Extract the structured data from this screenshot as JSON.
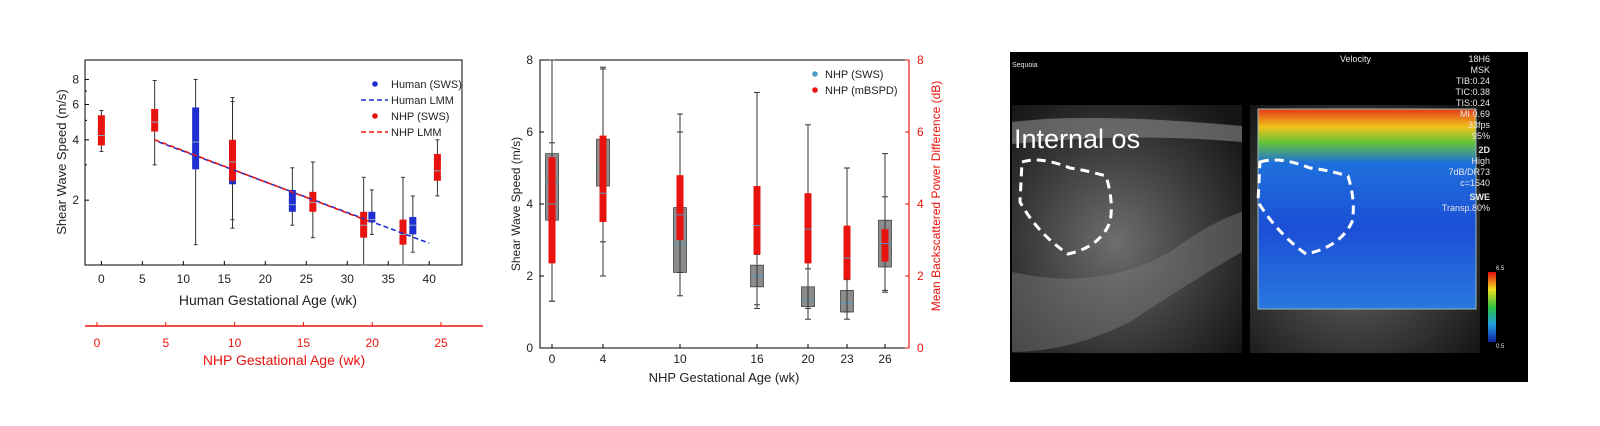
{
  "panel_a": {
    "ylabel": "Shear Wave Speed (m/s)",
    "xlabel": "Human Gestational Age (wk)",
    "x2label": "NHP Gestational Age (wk)",
    "y_ticks": [
      "2",
      "4",
      "6",
      "8"
    ],
    "x_ticks": [
      "0",
      "5",
      "10",
      "15",
      "20",
      "25",
      "30",
      "35",
      "40"
    ],
    "x2_ticks": [
      "0",
      "5",
      "10",
      "15",
      "20",
      "25"
    ],
    "legend": [
      {
        "label": "Human (SWS)",
        "kind": "dot",
        "color": "#1f2fcf"
      },
      {
        "label": "Human LMM",
        "kind": "dash",
        "color": "#1f2fcf"
      },
      {
        "label": "NHP (SWS)",
        "kind": "dot",
        "color": "#e8130e"
      },
      {
        "label": "NHP LMM",
        "kind": "dash",
        "color": "#e8130e"
      }
    ]
  },
  "panel_b": {
    "ylabel_left": "Shear Wave Speed (m/s)",
    "ylabel_right": "Mean Backscattered Power Difference (dB)",
    "xlabel": "NHP Gestational Age (wk)",
    "y_ticks": [
      "0",
      "2",
      "4",
      "6",
      "8"
    ],
    "x_ticks": [
      "0",
      "4",
      "10",
      "16",
      "20",
      "23",
      "26"
    ],
    "legend": [
      {
        "label": "NHP (SWS)",
        "color": "#4a9cc9"
      },
      {
        "label": "NHP (mBSPD)",
        "color": "#e8130e"
      }
    ]
  },
  "panel_c": {
    "label_internal_os": "Internal os",
    "brand": "Sequoia",
    "mode": "Velocity",
    "info_lines": [
      "18H6",
      "MSK",
      "TIB:0.24",
      "TIC:0.38",
      "TIS:0.24",
      "MI 0.69",
      "33fps",
      "95%"
    ],
    "info_lines2": [
      "2D",
      "High",
      "7dB/DR73",
      "c=1540"
    ],
    "info_lines3": [
      "SWE",
      "Transp.80%"
    ],
    "colorbar_top": "6.5",
    "colorbar_bottom": "0.5"
  },
  "chart_data": [
    {
      "type": "box",
      "ylabel": "Shear Wave Speed (m/s)",
      "xlabel": "Human Gestational Age (wk)",
      "x2label": "NHP Gestational Age (wk)",
      "yscale": "log",
      "ylim": [
        0.95,
        10
      ],
      "xlim": [
        -2,
        44
      ],
      "legend_position": "top-right",
      "series": [
        {
          "name": "Human (SWS)",
          "color": "#1f2fcf",
          "boxes": [
            {
              "x": 11.5,
              "min": 1.2,
              "q1": 2.85,
              "median": 3.9,
              "q3": 5.8,
              "max": 8.0
            },
            {
              "x": 16.0,
              "min": 1.45,
              "q1": 2.4,
              "median": 2.9,
              "q3": 3.8,
              "max": 6.2
            },
            {
              "x": 23.3,
              "min": 1.5,
              "q1": 1.75,
              "median": 1.9,
              "q3": 2.25,
              "max": 2.9
            },
            {
              "x": 33.0,
              "min": 1.35,
              "q1": 1.55,
              "median": 1.6,
              "q3": 1.75,
              "max": 2.25
            },
            {
              "x": 38.0,
              "min": 1.1,
              "q1": 1.35,
              "median": 1.5,
              "q3": 1.65,
              "max": 2.1
            }
          ]
        },
        {
          "name": "NHP (SWS)",
          "color": "#e8130e",
          "boxes": [
            {
              "x": 0.0,
              "min": 3.5,
              "q1": 3.75,
              "median": 4.2,
              "q3": 5.3,
              "max": 5.6
            },
            {
              "x": 6.5,
              "min": 3.0,
              "q1": 4.4,
              "median": 4.9,
              "q3": 5.7,
              "max": 7.9
            },
            {
              "x": 16.0,
              "min": 1.6,
              "q1": 2.5,
              "median": 3.1,
              "q3": 4.0,
              "max": 6.5
            },
            {
              "x": 25.8,
              "min": 1.3,
              "q1": 1.75,
              "median": 1.95,
              "q3": 2.2,
              "max": 3.1
            },
            {
              "x": 32.0,
              "min": 0.95,
              "q1": 1.3,
              "median": 1.5,
              "q3": 1.75,
              "max": 2.6
            },
            {
              "x": 36.8,
              "min": 0.95,
              "q1": 1.2,
              "median": 1.35,
              "q3": 1.6,
              "max": 2.6
            },
            {
              "x": 41.0,
              "min": 2.1,
              "q1": 2.5,
              "median": 2.8,
              "q3": 3.4,
              "max": 4.0
            }
          ]
        }
      ],
      "lines": [
        {
          "name": "Human LMM",
          "color": "#1f2fcf",
          "x": [
            7,
            40
          ],
          "y": [
            3.9,
            1.22
          ]
        },
        {
          "name": "NHP LMM",
          "color": "#e8130e",
          "x": [
            6.5,
            33
          ],
          "y": [
            4.0,
            1.55
          ]
        }
      ]
    },
    {
      "type": "box",
      "ylabel": "Shear Wave Speed (m/s)",
      "ylabel_right": "Mean Backscattered Power Difference (dB)",
      "xlabel": "NHP Gestational Age (wk)",
      "ylim": [
        0,
        8
      ],
      "y2lim": [
        0,
        8
      ],
      "categories": [
        "0",
        "4",
        "10",
        "16",
        "20",
        "23",
        "26"
      ],
      "legend_position": "top-right",
      "series": [
        {
          "name": "NHP (SWS)",
          "color": "#888888",
          "boxes": [
            {
              "x": 0,
              "min": 1.3,
              "q1": 3.55,
              "median": 4.6,
              "q3": 5.4,
              "max": 8.0
            },
            {
              "x": 4,
              "min": 2.95,
              "q1": 4.5,
              "median": 5.0,
              "q3": 5.8,
              "max": 7.75
            },
            {
              "x": 10,
              "min": 1.45,
              "q1": 2.1,
              "median": 2.9,
              "q3": 3.9,
              "max": 6.0
            },
            {
              "x": 16,
              "min": 1.1,
              "q1": 1.7,
              "median": 2.0,
              "q3": 2.3,
              "max": 2.6
            },
            {
              "x": 20,
              "min": 0.8,
              "q1": 1.15,
              "median": 1.35,
              "q3": 1.7,
              "max": 2.2
            },
            {
              "x": 23,
              "min": 0.8,
              "q1": 1.0,
              "median": 1.25,
              "q3": 1.6,
              "max": 1.9
            },
            {
              "x": 26,
              "min": 1.55,
              "q1": 2.25,
              "median": 2.9,
              "q3": 3.55,
              "max": 5.4
            }
          ]
        },
        {
          "name": "NHP (mBSPD)",
          "color": "#e8130e",
          "boxes": [
            {
              "x": 0,
              "min": 1.3,
              "q1": 2.35,
              "median": 4.0,
              "q3": 5.3,
              "max": 5.7
            },
            {
              "x": 4,
              "min": 2.0,
              "q1": 3.5,
              "median": 4.3,
              "q3": 5.9,
              "max": 7.8
            },
            {
              "x": 10,
              "min": 2.1,
              "q1": 3.0,
              "median": 3.7,
              "q3": 4.8,
              "max": 6.5
            },
            {
              "x": 16,
              "min": 1.2,
              "q1": 2.6,
              "median": 3.4,
              "q3": 4.5,
              "max": 7.1
            },
            {
              "x": 20,
              "min": 1.1,
              "q1": 2.35,
              "median": 3.3,
              "q3": 4.3,
              "max": 6.2
            },
            {
              "x": 23,
              "min": 1.0,
              "q1": 1.9,
              "median": 2.5,
              "q3": 3.4,
              "max": 5.0
            },
            {
              "x": 26,
              "min": 1.6,
              "q1": 2.4,
              "median": 2.9,
              "q3": 3.3,
              "max": 4.2
            }
          ]
        }
      ]
    }
  ]
}
